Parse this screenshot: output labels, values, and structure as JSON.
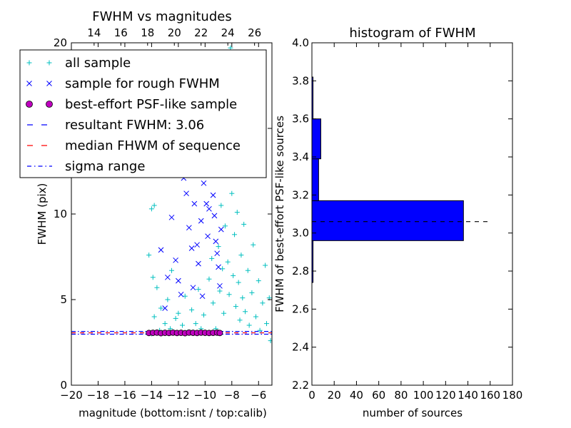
{
  "chart_data": [
    {
      "type": "scatter",
      "title": "FWHM vs magnitudes",
      "xlabel": "magnitude (bottom:isnt / top:calib)",
      "ylabel": "FWHM (pix)",
      "xlim": [
        -20,
        -5
      ],
      "ylim": [
        0,
        20
      ],
      "x_ticks": [
        -20,
        -18,
        -16,
        -14,
        -12,
        -10,
        -8,
        -6
      ],
      "x_tick_labels": [
        "−20",
        "−18",
        "−16",
        "−14",
        "−12",
        "−10",
        "−8",
        "−6"
      ],
      "y_ticks": [
        0,
        5,
        10,
        15,
        20
      ],
      "y_tick_labels": [
        "0",
        "5",
        "10",
        "15",
        "20"
      ],
      "top_axis": {
        "offset": 32.3,
        "ticks": [
          14,
          16,
          18,
          20,
          22,
          24,
          26
        ],
        "tick_labels": [
          "14",
          "16",
          "18",
          "20",
          "22",
          "24",
          "26"
        ]
      },
      "legend": {
        "placement": "upper-left",
        "entries": [
          {
            "label": "all sample",
            "marker": "+",
            "color": "#00bfbf"
          },
          {
            "label": "sample for rough FWHM",
            "marker": "x",
            "color": "#0000ff"
          },
          {
            "label": "best-effort PSF-like sample",
            "marker": "o",
            "color": "#bf00bf"
          },
          {
            "label": "resultant FWHM: 3.06",
            "line": "dashed",
            "color": "#0000ff"
          },
          {
            "label": "median FHWM of sequence",
            "line": "dashed",
            "color": "#ff0000"
          },
          {
            "label": "sigma range",
            "line": "dashdot",
            "color": "#0000ff"
          }
        ]
      },
      "series": [
        {
          "name": "all sample",
          "marker": "+",
          "color": "#00bfbf",
          "points": [
            [
              -14.2,
              7.6
            ],
            [
              -14.0,
              10.3
            ],
            [
              -13.9,
              6.3
            ],
            [
              -13.8,
              10.5
            ],
            [
              -13.8,
              4.0
            ],
            [
              -14.0,
              3.0
            ],
            [
              -13.6,
              5.7
            ],
            [
              -13.4,
              3.2
            ],
            [
              -13.3,
              4.5
            ],
            [
              -13.0,
              3.6
            ],
            [
              -12.8,
              5.0
            ],
            [
              -12.6,
              3.3
            ],
            [
              -12.5,
              6.7
            ],
            [
              -12.2,
              3.9
            ],
            [
              -12.0,
              4.2
            ],
            [
              -11.7,
              3.5
            ],
            [
              -11.5,
              5.2
            ],
            [
              -11.3,
              3.1
            ],
            [
              -11.0,
              4.4
            ],
            [
              -10.7,
              3.6
            ],
            [
              -10.5,
              5.6
            ],
            [
              -10.3,
              3.3
            ],
            [
              -10.1,
              4.1
            ],
            [
              -9.7,
              6.2
            ],
            [
              -9.5,
              7.4
            ],
            [
              -9.4,
              4.8
            ],
            [
              -9.2,
              3.3
            ],
            [
              -9.0,
              8.1
            ],
            [
              -8.9,
              5.5
            ],
            [
              -8.8,
              10.5
            ],
            [
              -8.7,
              6.8
            ],
            [
              -8.6,
              4.2
            ],
            [
              -8.5,
              9.3
            ],
            [
              -8.4,
              12.4
            ],
            [
              -8.3,
              7.2
            ],
            [
              -8.2,
              5.3
            ],
            [
              -8.1,
              14.6
            ],
            [
              -8.0,
              11.2
            ],
            [
              -7.9,
              6.4
            ],
            [
              -7.8,
              8.8
            ],
            [
              -7.7,
              4.6
            ],
            [
              -7.6,
              10.1
            ],
            [
              -7.5,
              6.0
            ],
            [
              -7.4,
              3.8
            ],
            [
              -7.3,
              7.6
            ],
            [
              -7.2,
              5.1
            ],
            [
              -7.1,
              9.4
            ],
            [
              -7.0,
              4.3
            ],
            [
              -6.8,
              6.7
            ],
            [
              -6.7,
              3.5
            ],
            [
              -6.5,
              5.4
            ],
            [
              -6.4,
              8.2
            ],
            [
              -6.2,
              4.0
            ],
            [
              -6.0,
              6.1
            ],
            [
              -5.9,
              3.2
            ],
            [
              -5.7,
              4.8
            ],
            [
              -5.5,
              7.0
            ],
            [
              -5.4,
              3.6
            ],
            [
              -5.2,
              5.1
            ],
            [
              -5.1,
              2.6
            ],
            [
              -11.2,
              19.4
            ],
            [
              -9.3,
              18.1
            ],
            [
              -8.1,
              19.7
            ],
            [
              -7.6,
              18.6
            ]
          ]
        },
        {
          "name": "sample for rough FWHM",
          "marker": "x",
          "color": "#0000ff",
          "points": [
            [
              -13.3,
              7.9
            ],
            [
              -13.0,
              4.5
            ],
            [
              -12.8,
              6.3
            ],
            [
              -12.5,
              9.8
            ],
            [
              -12.2,
              7.3
            ],
            [
              -12.0,
              6.1
            ],
            [
              -11.8,
              5.3
            ],
            [
              -11.6,
              12.1
            ],
            [
              -11.4,
              11.2
            ],
            [
              -11.2,
              9.2
            ],
            [
              -11.0,
              8.0
            ],
            [
              -10.9,
              5.7
            ],
            [
              -10.8,
              10.6
            ],
            [
              -10.6,
              8.2
            ],
            [
              -10.5,
              7.1
            ],
            [
              -10.3,
              9.6
            ],
            [
              -10.2,
              5.2
            ],
            [
              -10.1,
              11.8
            ],
            [
              -10.0,
              12.7
            ],
            [
              -9.9,
              10.6
            ],
            [
              -9.8,
              8.7
            ],
            [
              -9.7,
              10.3
            ],
            [
              -9.6,
              12.8
            ],
            [
              -9.5,
              12.3
            ],
            [
              -9.4,
              11.1
            ],
            [
              -9.3,
              9.9
            ],
            [
              -9.2,
              8.4
            ],
            [
              -9.1,
              7.7
            ],
            [
              -9.0,
              6.9
            ],
            [
              -8.9,
              5.8
            ],
            [
              -8.8,
              9.1
            ]
          ]
        },
        {
          "name": "best-effort PSF-like sample",
          "marker": "o",
          "color": "#bf00bf",
          "points": [
            [
              -14.2,
              3.05
            ],
            [
              -13.9,
              3.06
            ],
            [
              -13.6,
              3.07
            ],
            [
              -13.3,
              3.04
            ],
            [
              -13.0,
              3.06
            ],
            [
              -12.7,
              3.05
            ],
            [
              -12.4,
              3.07
            ],
            [
              -12.1,
              3.05
            ],
            [
              -11.8,
              3.06
            ],
            [
              -11.5,
              3.04
            ],
            [
              -11.2,
              3.07
            ],
            [
              -10.9,
              3.06
            ],
            [
              -10.6,
              3.05
            ],
            [
              -10.3,
              3.07
            ],
            [
              -10.0,
              3.06
            ],
            [
              -9.7,
              3.05
            ],
            [
              -9.4,
              3.06
            ],
            [
              -9.1,
              3.07
            ],
            [
              -8.9,
              3.05
            ]
          ]
        }
      ],
      "lines": [
        {
          "name": "resultant FWHM: 3.06",
          "y": 3.06,
          "style": "dashed",
          "color": "#0000ff"
        },
        {
          "name": "median FHWM of sequence",
          "y": 3.06,
          "style": "dashed",
          "color": "#ff0000"
        },
        {
          "name": "sigma range",
          "y": 2.98,
          "style": "dashdot",
          "color": "#0000ff"
        },
        {
          "name": "sigma range",
          "y": 3.14,
          "style": "dashdot",
          "color": "#0000ff"
        }
      ],
      "grid": false
    },
    {
      "type": "bar",
      "orientation": "horizontal",
      "title": "histogram of FWHM",
      "xlabel": "number of sources",
      "ylabel": "FWHM of best-effort PSF-like sources",
      "xlim": [
        0,
        180
      ],
      "ylim": [
        2.2,
        4.0
      ],
      "x_ticks": [
        0,
        20,
        40,
        60,
        80,
        100,
        120,
        140,
        160,
        180
      ],
      "x_tick_labels": [
        "0",
        "20",
        "40",
        "60",
        "80",
        "100",
        "120",
        "140",
        "160",
        "180"
      ],
      "y_ticks": [
        2.2,
        2.4,
        2.6,
        2.8,
        3.0,
        3.2,
        3.4,
        3.6,
        3.8,
        4.0
      ],
      "y_tick_labels": [
        "2.2",
        "2.4",
        "2.6",
        "2.8",
        "3.0",
        "3.2",
        "3.4",
        "3.6",
        "3.8",
        "4.0"
      ],
      "color": "#0000ff",
      "bins": [
        {
          "low": 2.74,
          "high": 2.96,
          "count": 1
        },
        {
          "low": 2.96,
          "high": 3.17,
          "count": 136
        },
        {
          "low": 3.17,
          "high": 3.39,
          "count": 6
        },
        {
          "low": 3.39,
          "high": 3.6,
          "count": 8
        },
        {
          "low": 3.6,
          "high": 3.82,
          "count": 1
        }
      ],
      "reference_line": {
        "y": 3.06,
        "x_from": 0,
        "x_to": 160,
        "style": "dashed",
        "color": "#000000"
      },
      "grid": false
    }
  ]
}
